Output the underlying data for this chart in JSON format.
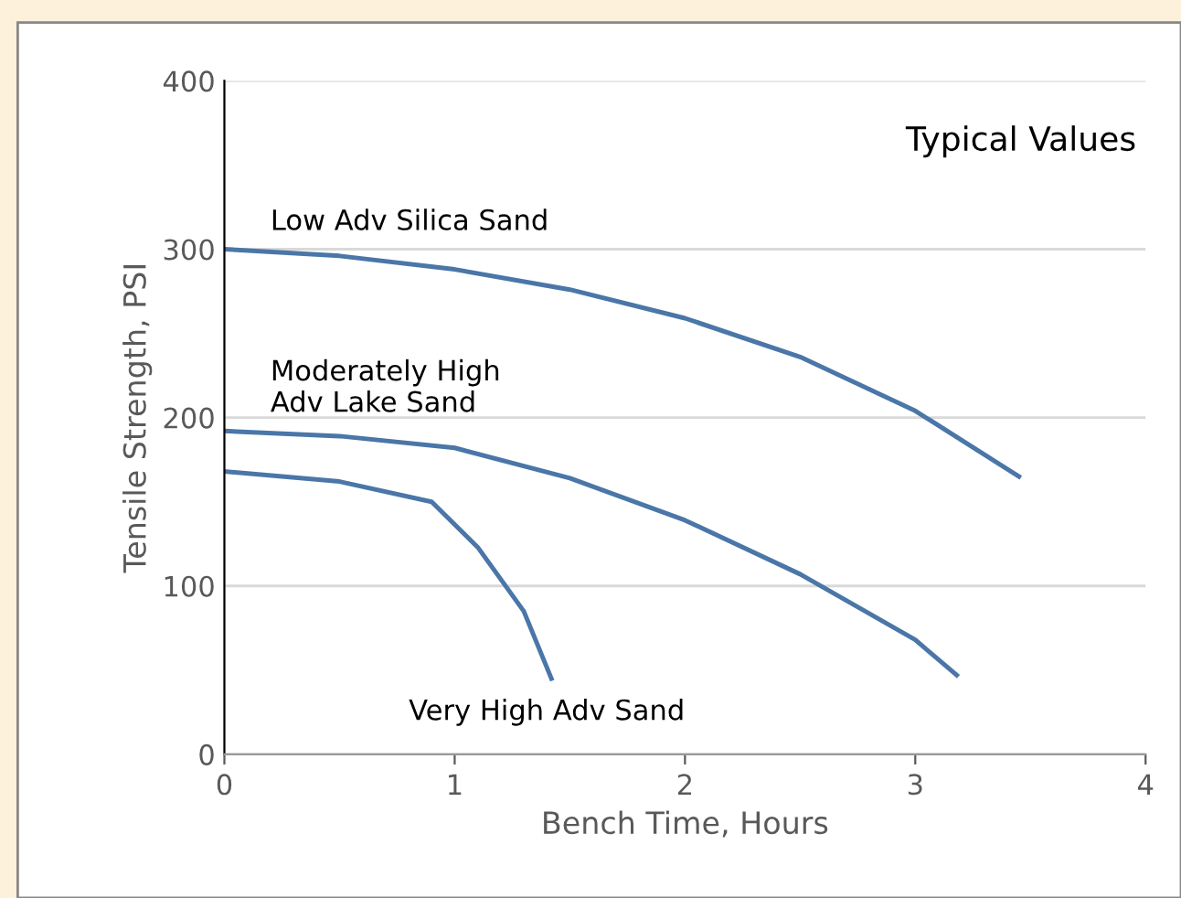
{
  "chart_data": {
    "type": "line",
    "xlabel": "Bench Time, Hours",
    "ylabel": "Tensile Strength, PSI",
    "annotations": [
      "Typical Values"
    ],
    "xlim": [
      0,
      4
    ],
    "xticks": [
      0,
      1,
      2,
      3,
      4
    ],
    "ylim": [
      0,
      400
    ],
    "yticks": [
      0,
      100,
      200,
      300,
      400
    ],
    "grid": "y",
    "marker": "none",
    "line_style": "solid",
    "series": [
      {
        "name": "Low Adv Silica Sand",
        "color": "#4a76a8",
        "x": [
          0,
          0.5,
          1,
          1.5,
          2,
          2.5,
          3,
          3.45
        ],
        "values": [
          300,
          296,
          288,
          276,
          259,
          236,
          204,
          165
        ]
      },
      {
        "name": "Moderately High\nAdv Lake Sand",
        "color": "#4a76a8",
        "x": [
          0,
          0.5,
          1,
          1.5,
          2,
          2.5,
          3,
          3.18
        ],
        "values": [
          192,
          189,
          182,
          164,
          139,
          107,
          68,
          47
        ]
      },
      {
        "name": "Very High Adv Sand",
        "color": "#4a76a8",
        "x": [
          0,
          0.5,
          0.9,
          1.1,
          1.3,
          1.42
        ],
        "values": [
          168,
          162,
          150,
          123,
          85,
          45
        ]
      }
    ]
  }
}
